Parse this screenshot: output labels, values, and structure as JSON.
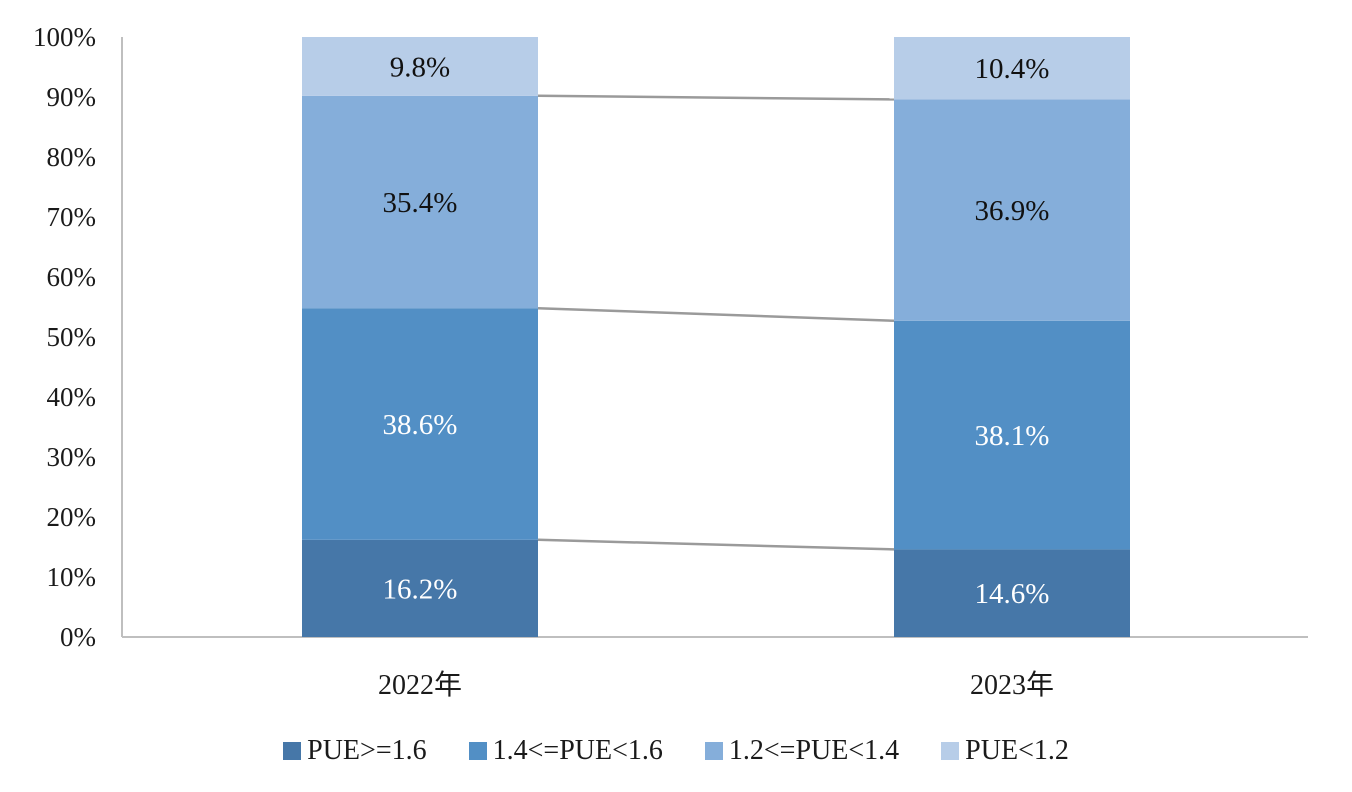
{
  "chart_data": {
    "type": "bar",
    "stacked": "percent",
    "categories": [
      "2022年",
      "2023年"
    ],
    "series": [
      {
        "name": "PUE>=1.6",
        "values": [
          16.2,
          14.6
        ],
        "color": "#4677A8",
        "label_color": "#ffffff"
      },
      {
        "name": "1.4<=PUE<1.6",
        "values": [
          38.6,
          38.1
        ],
        "color": "#528FC5",
        "label_color": "#ffffff"
      },
      {
        "name": "1.2<=PUE<1.4",
        "values": [
          35.4,
          36.9
        ],
        "color": "#85AEDA",
        "label_color": "#111111"
      },
      {
        "name": "PUE<1.2",
        "values": [
          9.8,
          10.4
        ],
        "color": "#B7CDE8",
        "label_color": "#111111"
      }
    ],
    "data_labels": [
      [
        "16.2%",
        "14.6%"
      ],
      [
        "38.6%",
        "38.1%"
      ],
      [
        "35.4%",
        "36.9%"
      ],
      [
        "9.8%",
        "10.4%"
      ]
    ],
    "ylim": [
      0,
      100
    ],
    "yticks": [
      "0%",
      "10%",
      "20%",
      "30%",
      "40%",
      "50%",
      "60%",
      "70%",
      "80%",
      "90%",
      "100%"
    ],
    "series_lines": true,
    "grid": false,
    "legend_position": "bottom",
    "title": "",
    "xlabel": "",
    "ylabel": ""
  }
}
